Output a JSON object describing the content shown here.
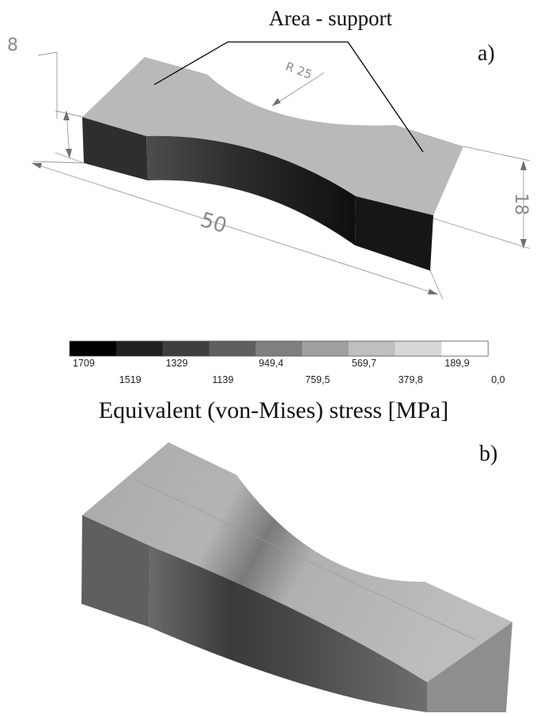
{
  "figure_a": {
    "label": "a)",
    "annotation": "Area - support",
    "dimensions": {
      "thickness": "8",
      "length": "50",
      "width": "18",
      "radius": "R 25"
    }
  },
  "legend": {
    "title": "Equivalent (von-Mises) stress [MPa]",
    "colors": [
      "#000000",
      "#202020",
      "#3f3f3f",
      "#5f5f5f",
      "#7f7f7f",
      "#9f9f9f",
      "#bfbfbf",
      "#d7d7d7",
      "#ffffff"
    ],
    "labels_top": [
      "1709",
      "1329",
      "949,4",
      "569,7",
      "189,9"
    ],
    "labels_bottom": [
      "1519",
      "1139",
      "759,5",
      "379,8",
      "0,0"
    ]
  },
  "figure_b": {
    "label": "b)"
  }
}
